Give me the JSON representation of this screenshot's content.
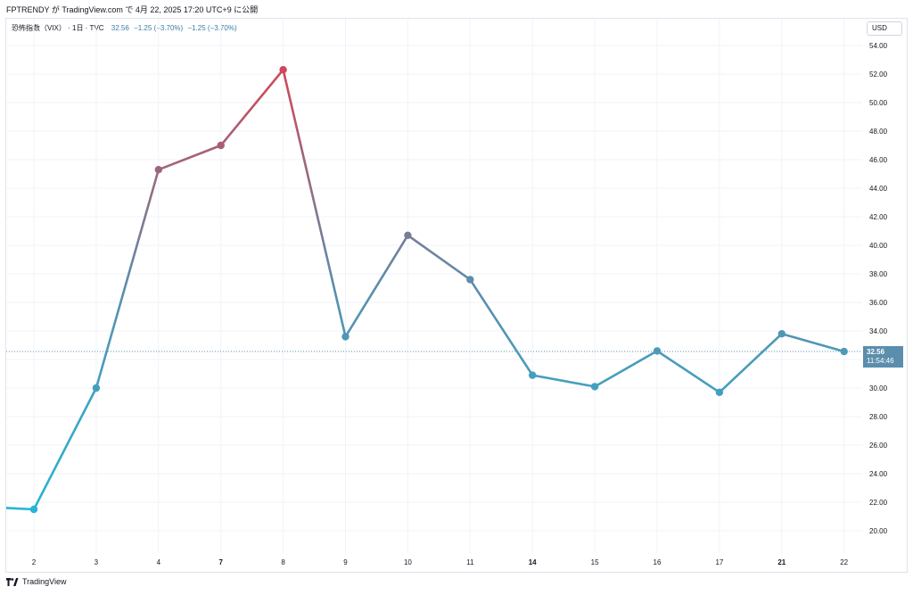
{
  "caption": "FPTRENDY が TradingView.com で 4月 22, 2025 17:20 UTC+9 に公開",
  "legend": {
    "symbol": "恐怖指数（VIX） · 1日 · TVC",
    "value": "32.56",
    "change1": "−1.25 (−3.70%)",
    "change2": "−1.25 (−3.70%)"
  },
  "currency": "USD",
  "price_tag": {
    "price": "32.56",
    "countdown": "11:54:46"
  },
  "footer": {
    "brand": "TradingView"
  },
  "colors": {
    "start": "#26b5d3",
    "mid": "#5b8ead",
    "high": "#d14757",
    "grid": "#f0f3fa",
    "dotted": "#5b8ead"
  },
  "chart_data": {
    "type": "line",
    "title": "恐怖指数（VIX）",
    "x": [
      "2",
      "3",
      "4",
      "7",
      "8",
      "9",
      "10",
      "11",
      "14",
      "15",
      "16",
      "17",
      "21",
      "22"
    ],
    "x_bold": [
      "7",
      "14",
      "21"
    ],
    "values": [
      21.5,
      30.0,
      45.3,
      47.0,
      52.3,
      33.6,
      40.7,
      37.6,
      30.9,
      30.1,
      32.6,
      29.7,
      33.8,
      32.56
    ],
    "leading_value": 21.6,
    "current_value": 32.56,
    "ylim": [
      18.5,
      56.0
    ],
    "yticks": [
      "20.00",
      "22.00",
      "24.00",
      "26.00",
      "28.00",
      "30.00",
      "32.00",
      "34.00",
      "36.00",
      "38.00",
      "40.00",
      "42.00",
      "44.00",
      "46.00",
      "48.00",
      "50.00",
      "52.00",
      "54.00"
    ],
    "grid": true
  }
}
